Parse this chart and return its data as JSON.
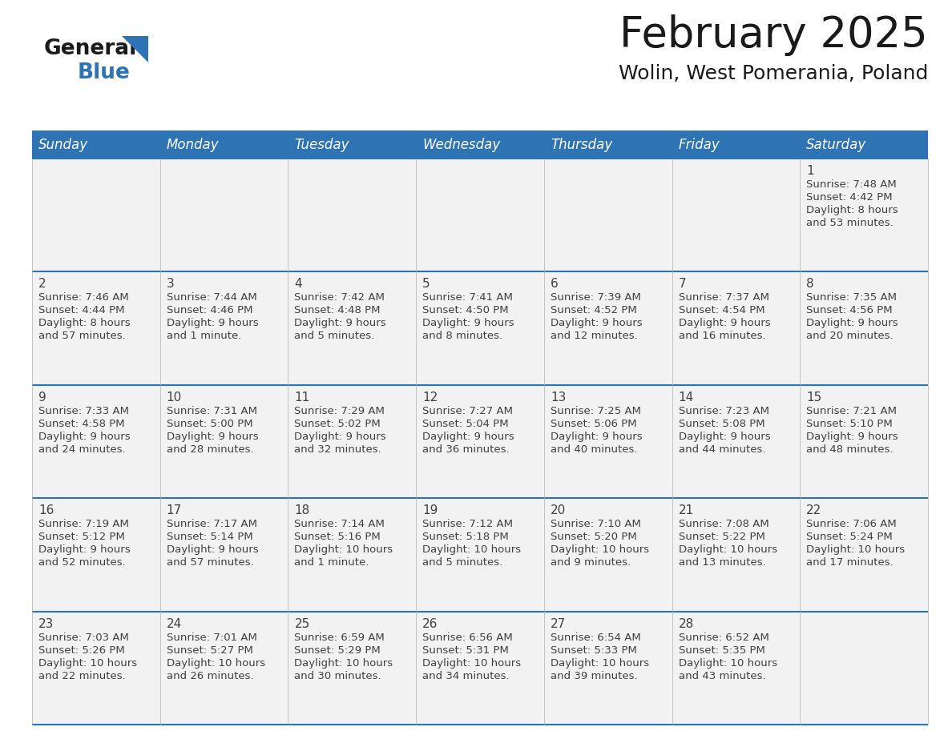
{
  "title": "February 2025",
  "subtitle": "Wolin, West Pomerania, Poland",
  "days_of_week": [
    "Sunday",
    "Monday",
    "Tuesday",
    "Wednesday",
    "Thursday",
    "Friday",
    "Saturday"
  ],
  "header_bg": "#2e74b5",
  "header_text_color": "#ffffff",
  "cell_bg": "#f2f2f2",
  "separator_color": "#2e74b5",
  "text_color": "#404040",
  "day_num_color": "#404040",
  "calendar_data": [
    {
      "day": 1,
      "col": 6,
      "row": 0,
      "sunrise": "7:48 AM",
      "sunset": "4:42 PM",
      "daylight_h": "8 hours",
      "daylight_m": "and 53 minutes."
    },
    {
      "day": 2,
      "col": 0,
      "row": 1,
      "sunrise": "7:46 AM",
      "sunset": "4:44 PM",
      "daylight_h": "8 hours",
      "daylight_m": "and 57 minutes."
    },
    {
      "day": 3,
      "col": 1,
      "row": 1,
      "sunrise": "7:44 AM",
      "sunset": "4:46 PM",
      "daylight_h": "9 hours",
      "daylight_m": "and 1 minute."
    },
    {
      "day": 4,
      "col": 2,
      "row": 1,
      "sunrise": "7:42 AM",
      "sunset": "4:48 PM",
      "daylight_h": "9 hours",
      "daylight_m": "and 5 minutes."
    },
    {
      "day": 5,
      "col": 3,
      "row": 1,
      "sunrise": "7:41 AM",
      "sunset": "4:50 PM",
      "daylight_h": "9 hours",
      "daylight_m": "and 8 minutes."
    },
    {
      "day": 6,
      "col": 4,
      "row": 1,
      "sunrise": "7:39 AM",
      "sunset": "4:52 PM",
      "daylight_h": "9 hours",
      "daylight_m": "and 12 minutes."
    },
    {
      "day": 7,
      "col": 5,
      "row": 1,
      "sunrise": "7:37 AM",
      "sunset": "4:54 PM",
      "daylight_h": "9 hours",
      "daylight_m": "and 16 minutes."
    },
    {
      "day": 8,
      "col": 6,
      "row": 1,
      "sunrise": "7:35 AM",
      "sunset": "4:56 PM",
      "daylight_h": "9 hours",
      "daylight_m": "and 20 minutes."
    },
    {
      "day": 9,
      "col": 0,
      "row": 2,
      "sunrise": "7:33 AM",
      "sunset": "4:58 PM",
      "daylight_h": "9 hours",
      "daylight_m": "and 24 minutes."
    },
    {
      "day": 10,
      "col": 1,
      "row": 2,
      "sunrise": "7:31 AM",
      "sunset": "5:00 PM",
      "daylight_h": "9 hours",
      "daylight_m": "and 28 minutes."
    },
    {
      "day": 11,
      "col": 2,
      "row": 2,
      "sunrise": "7:29 AM",
      "sunset": "5:02 PM",
      "daylight_h": "9 hours",
      "daylight_m": "and 32 minutes."
    },
    {
      "day": 12,
      "col": 3,
      "row": 2,
      "sunrise": "7:27 AM",
      "sunset": "5:04 PM",
      "daylight_h": "9 hours",
      "daylight_m": "and 36 minutes."
    },
    {
      "day": 13,
      "col": 4,
      "row": 2,
      "sunrise": "7:25 AM",
      "sunset": "5:06 PM",
      "daylight_h": "9 hours",
      "daylight_m": "and 40 minutes."
    },
    {
      "day": 14,
      "col": 5,
      "row": 2,
      "sunrise": "7:23 AM",
      "sunset": "5:08 PM",
      "daylight_h": "9 hours",
      "daylight_m": "and 44 minutes."
    },
    {
      "day": 15,
      "col": 6,
      "row": 2,
      "sunrise": "7:21 AM",
      "sunset": "5:10 PM",
      "daylight_h": "9 hours",
      "daylight_m": "and 48 minutes."
    },
    {
      "day": 16,
      "col": 0,
      "row": 3,
      "sunrise": "7:19 AM",
      "sunset": "5:12 PM",
      "daylight_h": "9 hours",
      "daylight_m": "and 52 minutes."
    },
    {
      "day": 17,
      "col": 1,
      "row": 3,
      "sunrise": "7:17 AM",
      "sunset": "5:14 PM",
      "daylight_h": "9 hours",
      "daylight_m": "and 57 minutes."
    },
    {
      "day": 18,
      "col": 2,
      "row": 3,
      "sunrise": "7:14 AM",
      "sunset": "5:16 PM",
      "daylight_h": "10 hours",
      "daylight_m": "and 1 minute."
    },
    {
      "day": 19,
      "col": 3,
      "row": 3,
      "sunrise": "7:12 AM",
      "sunset": "5:18 PM",
      "daylight_h": "10 hours",
      "daylight_m": "and 5 minutes."
    },
    {
      "day": 20,
      "col": 4,
      "row": 3,
      "sunrise": "7:10 AM",
      "sunset": "5:20 PM",
      "daylight_h": "10 hours",
      "daylight_m": "and 9 minutes."
    },
    {
      "day": 21,
      "col": 5,
      "row": 3,
      "sunrise": "7:08 AM",
      "sunset": "5:22 PM",
      "daylight_h": "10 hours",
      "daylight_m": "and 13 minutes."
    },
    {
      "day": 22,
      "col": 6,
      "row": 3,
      "sunrise": "7:06 AM",
      "sunset": "5:24 PM",
      "daylight_h": "10 hours",
      "daylight_m": "and 17 minutes."
    },
    {
      "day": 23,
      "col": 0,
      "row": 4,
      "sunrise": "7:03 AM",
      "sunset": "5:26 PM",
      "daylight_h": "10 hours",
      "daylight_m": "and 22 minutes."
    },
    {
      "day": 24,
      "col": 1,
      "row": 4,
      "sunrise": "7:01 AM",
      "sunset": "5:27 PM",
      "daylight_h": "10 hours",
      "daylight_m": "and 26 minutes."
    },
    {
      "day": 25,
      "col": 2,
      "row": 4,
      "sunrise": "6:59 AM",
      "sunset": "5:29 PM",
      "daylight_h": "10 hours",
      "daylight_m": "and 30 minutes."
    },
    {
      "day": 26,
      "col": 3,
      "row": 4,
      "sunrise": "6:56 AM",
      "sunset": "5:31 PM",
      "daylight_h": "10 hours",
      "daylight_m": "and 34 minutes."
    },
    {
      "day": 27,
      "col": 4,
      "row": 4,
      "sunrise": "6:54 AM",
      "sunset": "5:33 PM",
      "daylight_h": "10 hours",
      "daylight_m": "and 39 minutes."
    },
    {
      "day": 28,
      "col": 5,
      "row": 4,
      "sunrise": "6:52 AM",
      "sunset": "5:35 PM",
      "daylight_h": "10 hours",
      "daylight_m": "and 43 minutes."
    }
  ]
}
